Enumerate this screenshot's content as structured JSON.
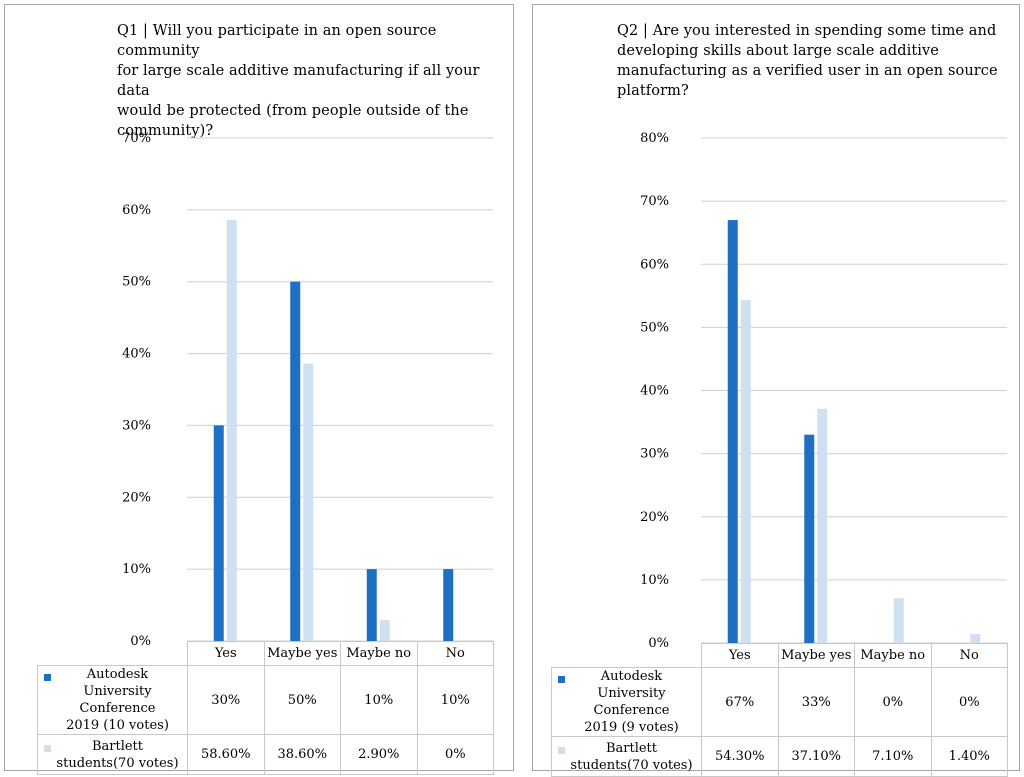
{
  "colors": {
    "series1": "#1f6fc5",
    "series2": "#cfe0f3",
    "grid": "#d0d0d0"
  },
  "chart_data": [
    {
      "type": "bar",
      "title": "Q1 | Will you participate in an open source community\nfor large scale additive manufacturing if all your data\nwould be protected (from people outside of the\ncommunity)?",
      "categories": [
        "Yes",
        "Maybe yes",
        "Maybe no",
        "No"
      ],
      "yticks": [
        "0%",
        "10%",
        "20%",
        "30%",
        "40%",
        "50%",
        "60%",
        "70%"
      ],
      "ylim": [
        0,
        70
      ],
      "grid": true,
      "legend": "data-table",
      "series": [
        {
          "name": "Autodesk\nUniversity Conference\n2019 (10 votes)",
          "values": [
            30,
            50,
            10,
            10
          ],
          "labels": [
            "30%",
            "50%",
            "10%",
            "10%"
          ]
        },
        {
          "name": "Bartlett\nstudents(70 votes)",
          "values": [
            58.6,
            38.6,
            2.9,
            0
          ],
          "labels": [
            "58.60%",
            "38.60%",
            "2.90%",
            "0%"
          ]
        }
      ]
    },
    {
      "type": "bar",
      "title": "Q2 | Are you interested in spending some time and\ndeveloping skills about large scale additive\nmanufacturing as a verified user in an open source\nplatform?",
      "categories": [
        "Yes",
        "Maybe yes",
        "Maybe no",
        "No"
      ],
      "yticks": [
        "0%",
        "10%",
        "20%",
        "30%",
        "40%",
        "50%",
        "60%",
        "70%",
        "80%"
      ],
      "ylim": [
        0,
        80
      ],
      "grid": true,
      "legend": "data-table",
      "series": [
        {
          "name": "Autodesk\nUniversity Conference\n2019 (9 votes)",
          "values": [
            67,
            33,
            0,
            0
          ],
          "labels": [
            "67%",
            "33%",
            "0%",
            "0%"
          ]
        },
        {
          "name": "Bartlett\nstudents(70 votes)",
          "values": [
            54.3,
            37.1,
            7.1,
            1.4
          ],
          "labels": [
            "54.30%",
            "37.10%",
            "7.10%",
            "1.40%"
          ]
        }
      ]
    }
  ]
}
